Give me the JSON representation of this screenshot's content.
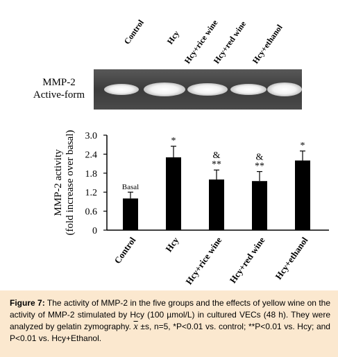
{
  "gel": {
    "lane_labels": [
      "Control",
      "Hcy",
      "Hcy+rice wine",
      "Hcy+red wine",
      "Hcy+ethanol"
    ],
    "row_label_line1": "MMP-2",
    "row_label_line2": "Active-form"
  },
  "chart_data": {
    "type": "bar",
    "categories": [
      "Control",
      "Hcy",
      "Hcy+rice wine",
      "Hcy+red wine",
      "Hcy+ethanol"
    ],
    "values": [
      1.0,
      2.3,
      1.6,
      1.55,
      2.2
    ],
    "errors": [
      0.2,
      0.35,
      0.3,
      0.3,
      0.3
    ],
    "annotations": [
      "Basal",
      "*",
      "&\n**",
      "&\n**",
      "*"
    ],
    "ylabel_line1": "MMP-2 activity",
    "ylabel_line2": "(fold increase over basal)",
    "ylim": [
      0,
      3.0
    ],
    "yticks": [
      "0",
      "0.6",
      "1.2",
      "1.8",
      "2.4",
      "3.0"
    ],
    "grid": false,
    "bar_color": "#000000"
  },
  "caption": {
    "label": "Figure 7:",
    "text_main": "The activity of MMP-2 in the five groups and the effects of yellow wine on the activity of MMP-2 stimulated by Hcy (100 µmol/L) in cultured VECs (48 h). They were analyzed by gelatin zymography.",
    "stat_symbol": "x",
    "text_after_symbol": "±s, n=5, *P<0.01 vs. control; **P<0.01 vs. Hcy; and P<0.01 vs. Hcy+Ethanol.",
    "background": "#fbe8cf"
  }
}
